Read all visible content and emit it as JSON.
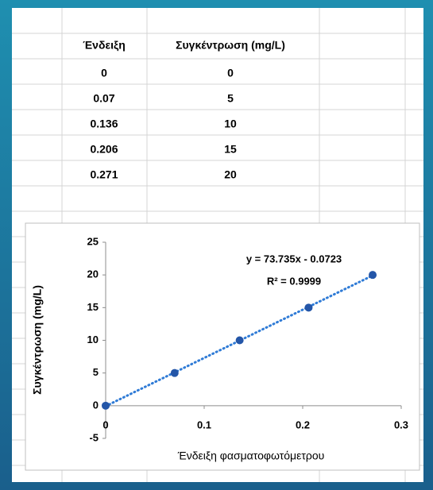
{
  "table": {
    "header": [
      "Ένδειξη",
      "Συγκέντρωση (mg/L)"
    ],
    "rows": [
      [
        0,
        0
      ],
      [
        0.07,
        5
      ],
      [
        0.136,
        10
      ],
      [
        0.206,
        15
      ],
      [
        0.271,
        20
      ]
    ]
  },
  "chart_data": {
    "type": "scatter",
    "x_label": "Ένδειξη φασματοφωτόμετρου",
    "y_label": "Συγκέντρωση (mg/L)",
    "x": [
      0,
      0.07,
      0.136,
      0.206,
      0.271
    ],
    "series": [
      {
        "color": "#2456a8",
        "values": [
          0,
          5,
          10,
          15,
          20
        ]
      }
    ],
    "trendline": {
      "color": "#2f7bd6",
      "equation": "y = 73.735x - 0.0723",
      "r2": "R² = 0.9999"
    },
    "xlim": [
      0,
      0.3
    ],
    "xticks": [
      0,
      0.1,
      0.2,
      0.3
    ],
    "ylim": [
      -5,
      25
    ],
    "yticks": [
      -5,
      0,
      5,
      10,
      15,
      20,
      25
    ],
    "grid": false
  }
}
